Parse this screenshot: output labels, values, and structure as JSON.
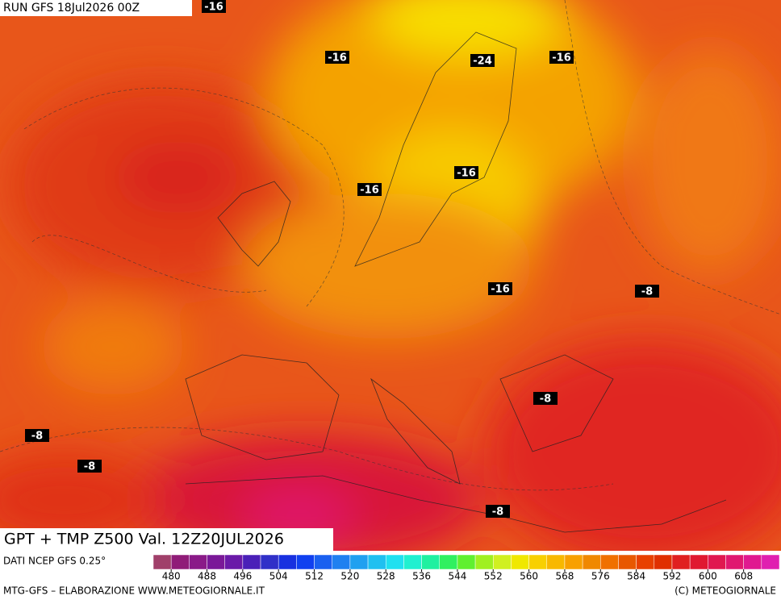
{
  "header": {
    "run": "RUN GFS 18Jul2026 00Z"
  },
  "map": {
    "temperature_labels": [
      "-16",
      "-16",
      "-24",
      "-16",
      "-16",
      "-16",
      "-16",
      "-8",
      "-8",
      "-8",
      "-8",
      "-8"
    ]
  },
  "footer": {
    "title": "GPT + TMP Z500 Val. 12Z20JUL2026",
    "source": "DATI NCEP GFS 0.25°",
    "credit": "MTG-GFS – ELABORAZIONE WWW.METEOGIORNALE.IT",
    "copyright": "(C) METEOGIORNALE"
  },
  "legend": {
    "ticks": [
      480,
      488,
      496,
      504,
      512,
      520,
      528,
      536,
      544,
      552,
      560,
      568,
      576,
      584,
      592,
      600,
      608
    ],
    "colors": [
      "#a0406a",
      "#901c78",
      "#8a1a88",
      "#7a1898",
      "#6a1aa8",
      "#4a20b8",
      "#3030c8",
      "#1830e0",
      "#1040f0",
      "#1a60f0",
      "#2080f0",
      "#20a0f0",
      "#20c0f0",
      "#20e0f0",
      "#20f0d0",
      "#20f0a0",
      "#30f060",
      "#60f030",
      "#a0f020",
      "#d0f020",
      "#f0e800",
      "#f8d000",
      "#f8b800",
      "#f8a000",
      "#f08800",
      "#f07000",
      "#e85800",
      "#e84000",
      "#e03000",
      "#e02020",
      "#e01830",
      "#e01850",
      "#e01870",
      "#e01890",
      "#e020b0"
    ]
  }
}
